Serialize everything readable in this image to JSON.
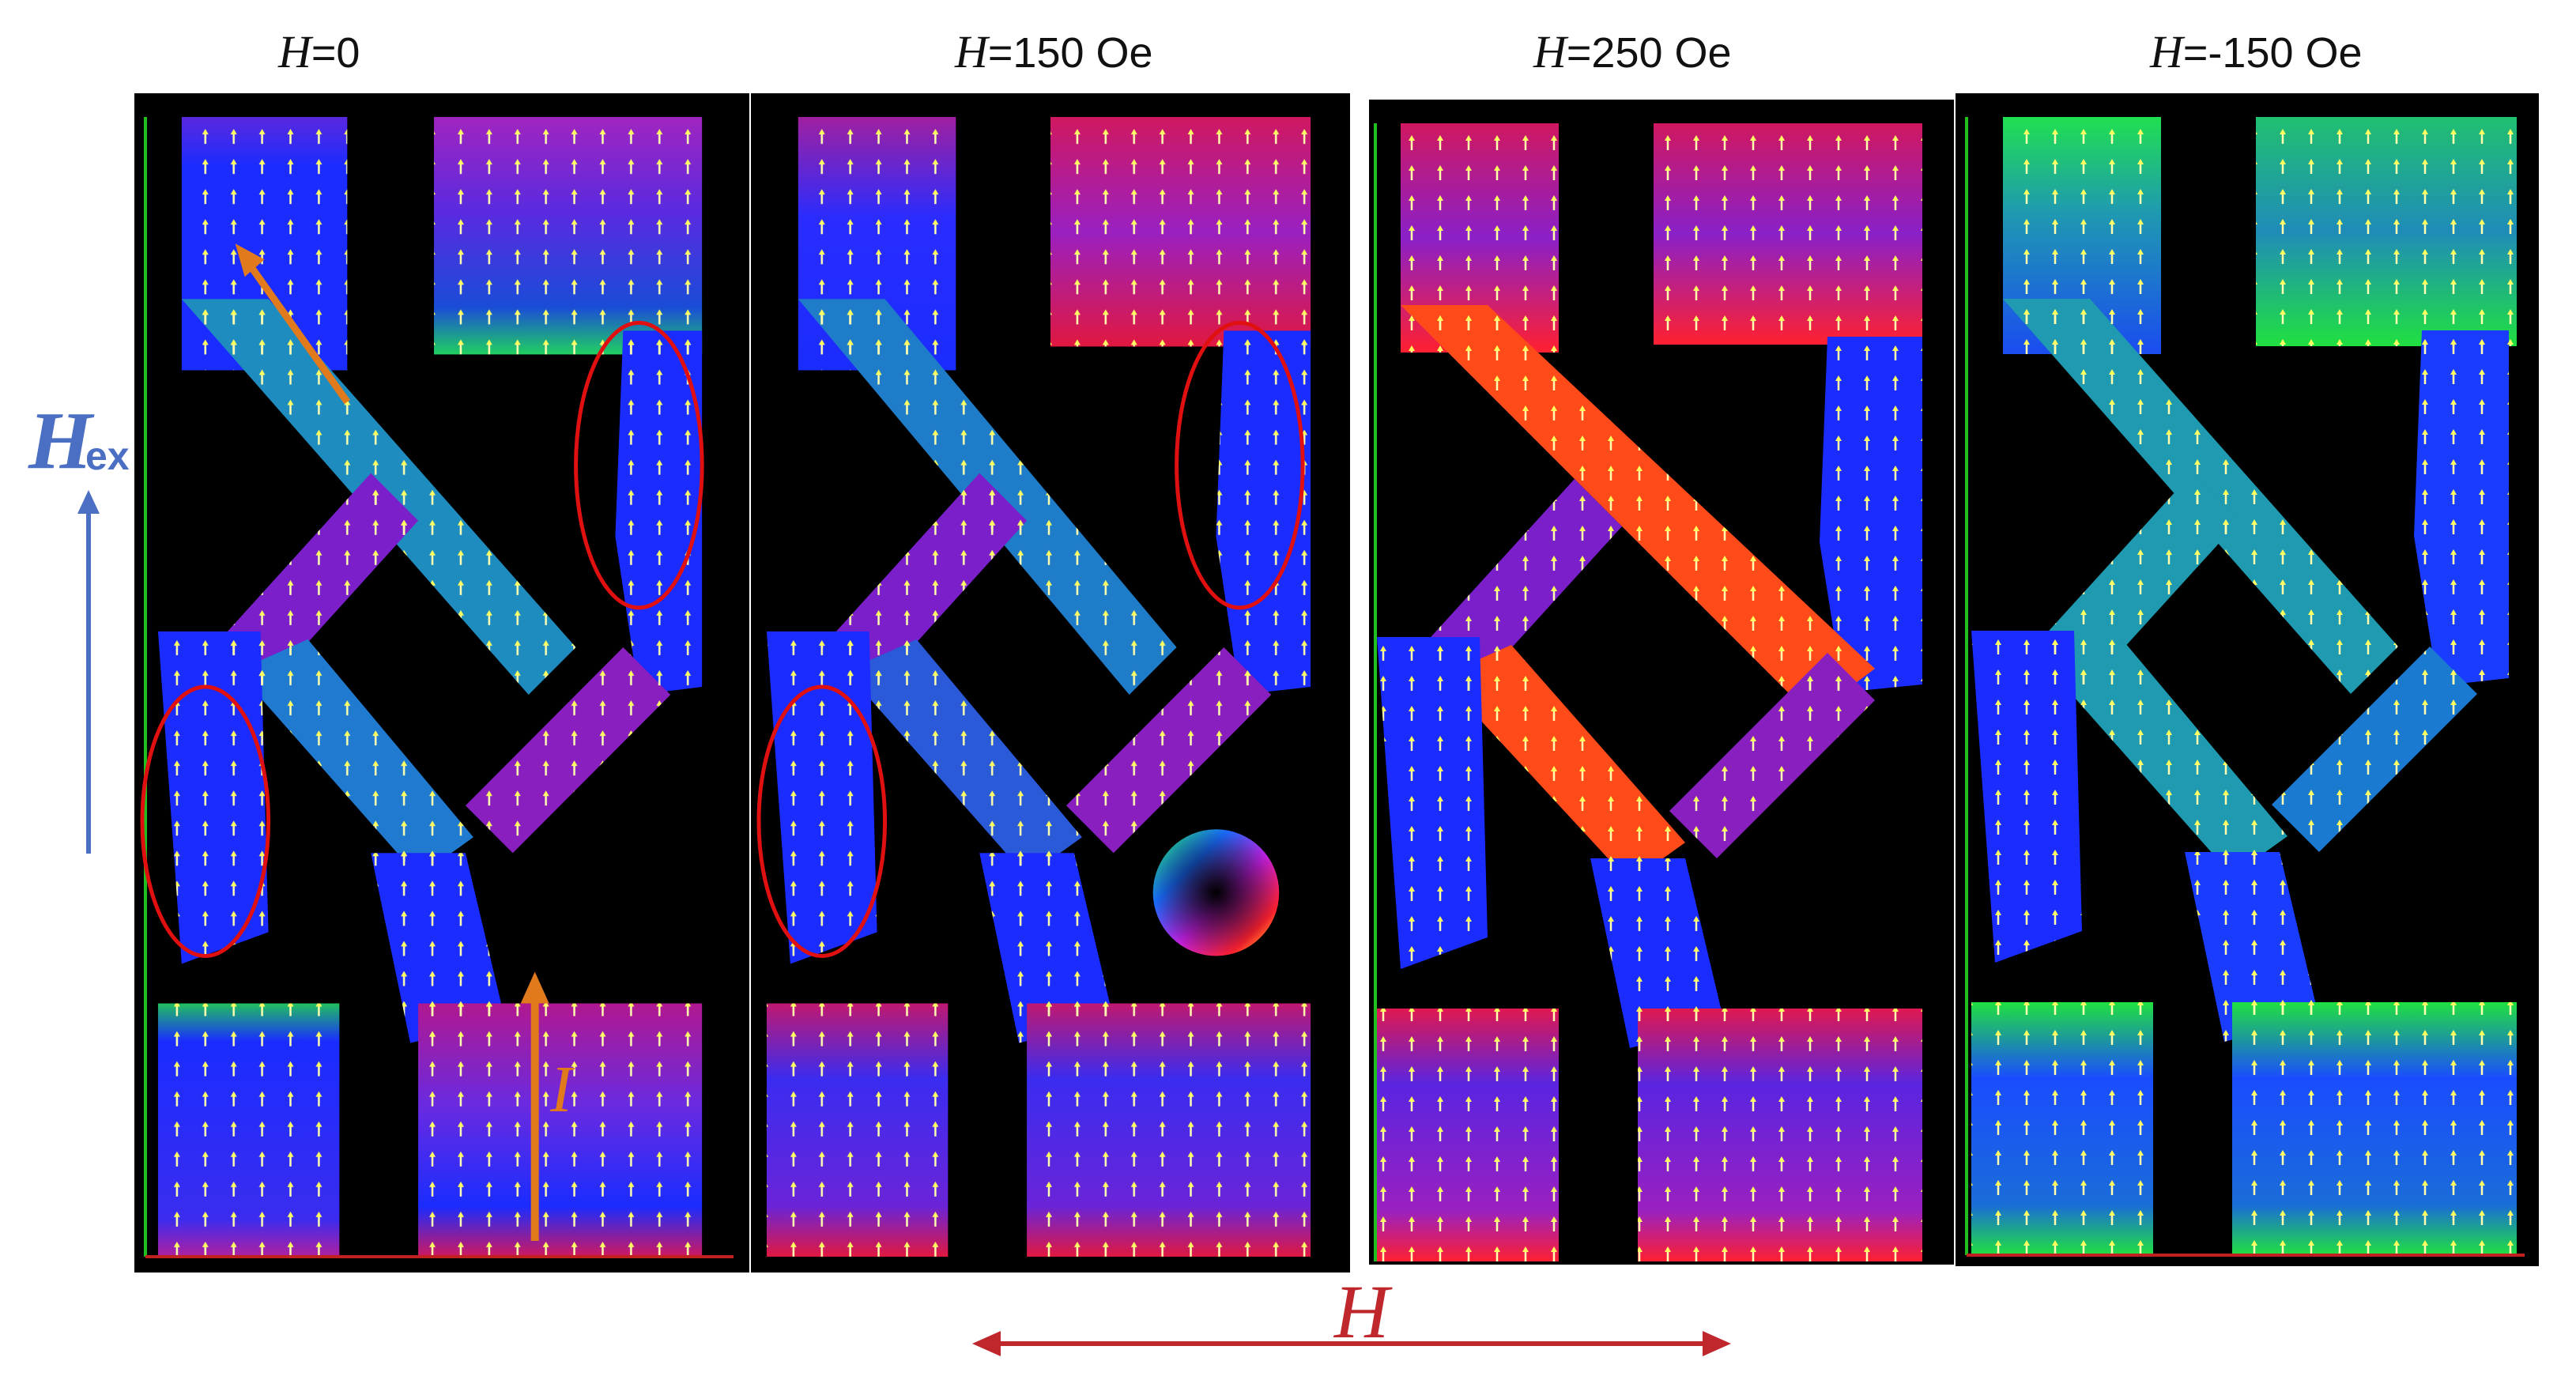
{
  "panels": [
    {
      "symbol": "H",
      "value": "=0"
    },
    {
      "symbol": "H",
      "value": "=150 Oe"
    },
    {
      "symbol": "H",
      "value": "=250 Oe"
    },
    {
      "symbol": "H",
      "value": "=-150 Oe"
    }
  ],
  "annotations": {
    "hex_symbol": "H",
    "hex_sub": "ex",
    "field_axis_symbol": "H",
    "current_symbol": "I"
  },
  "colors": {
    "blue": "#1a2cff",
    "purple": "#7a1fc9",
    "red": "#ff1a2a",
    "orange_red": "#ff4a1a",
    "green": "#20e040",
    "teal": "#1f9ab0",
    "annotation_blue": "#4a6fc3",
    "annotation_red": "#c0272d",
    "annotation_orange": "#e07a1c",
    "ellipse_red": "#e01010",
    "frame_green": "#20c020"
  },
  "icons": [
    "color-wheel-icon",
    "arrow-up-icon",
    "double-arrow-icon"
  ]
}
